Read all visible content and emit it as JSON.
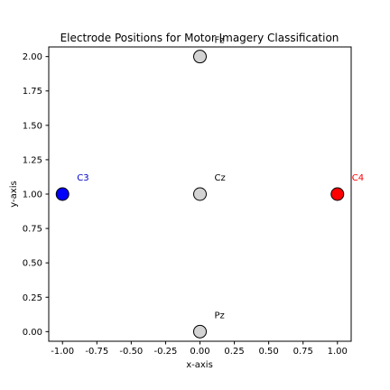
{
  "chart_data": {
    "type": "scatter",
    "title": "Electrode Positions for Motor Imagery Classification",
    "xlabel": "x-axis",
    "ylabel": "y-axis",
    "xlim": [
      -1.1,
      1.1
    ],
    "ylim": [
      -0.07,
      2.07
    ],
    "xticks": [
      "-1.00",
      "-0.75",
      "-0.50",
      "-0.25",
      "0.00",
      "0.25",
      "0.50",
      "0.75",
      "1.00"
    ],
    "yticks": [
      "0.00",
      "0.25",
      "0.50",
      "0.75",
      "1.00",
      "1.25",
      "1.50",
      "1.75",
      "2.00"
    ],
    "grid": false,
    "points": [
      {
        "label": "Fz",
        "x": 0.0,
        "y": 2.0,
        "color": "#d3d3d3",
        "label_color": "#000000"
      },
      {
        "label": "C3",
        "x": -1.0,
        "y": 1.0,
        "color": "#0000ff",
        "label_color": "#0000cc"
      },
      {
        "label": "Cz",
        "x": 0.0,
        "y": 1.0,
        "color": "#d3d3d3",
        "label_color": "#000000"
      },
      {
        "label": "C4",
        "x": 1.0,
        "y": 1.0,
        "color": "#ff0000",
        "label_color": "#ff0000"
      },
      {
        "label": "Pz",
        "x": 0.0,
        "y": 0.0,
        "color": "#d3d3d3",
        "label_color": "#000000"
      }
    ]
  }
}
